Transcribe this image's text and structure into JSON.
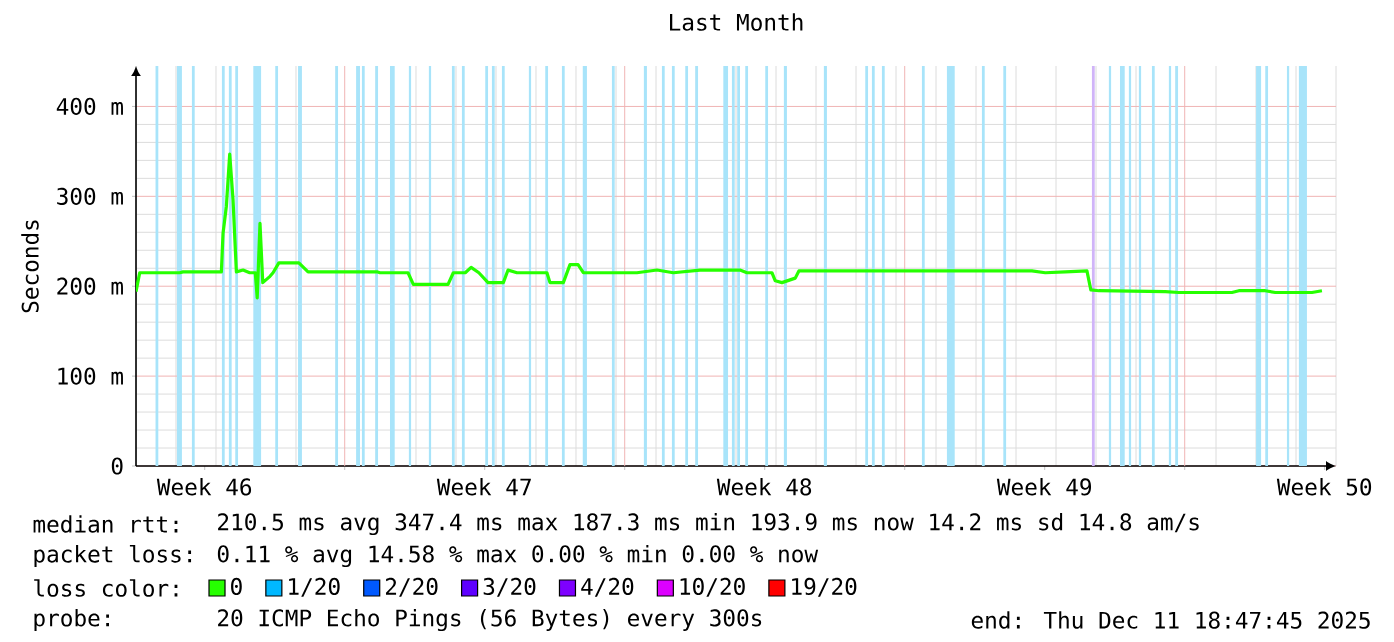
{
  "chart_data": {
    "type": "line",
    "title": "Last Month",
    "ylabel": "Seconds",
    "xlim": [
      "2025-11-11T18:47",
      "2025-12-11T18:47"
    ],
    "ylim": [
      0,
      445
    ],
    "xticks": [
      {
        "value": "2025-11-13T12:00",
        "label": "Week 46"
      },
      {
        "value": "2025-11-17T00:00",
        "label": null
      },
      {
        "value": "2025-11-20T12:00",
        "label": "Week 47"
      },
      {
        "value": "2025-11-24T00:00",
        "label": null
      },
      {
        "value": "2025-11-27T12:00",
        "label": "Week 48"
      },
      {
        "value": "2025-12-01T00:00",
        "label": null
      },
      {
        "value": "2025-12-04T12:00",
        "label": "Week 49"
      },
      {
        "value": "2025-12-08T00:00",
        "label": null
      },
      {
        "value": "2025-12-11T12:00",
        "label": "Week 50"
      }
    ],
    "yticks": [
      0,
      {
        "value": 100,
        "label": "100 m"
      },
      {
        "value": 200,
        "label": "200 m"
      },
      {
        "value": 300,
        "label": "300 m"
      },
      {
        "value": 400,
        "label": "400 m"
      }
    ],
    "grid": true,
    "legend": "bottom",
    "legend_title": "loss color:",
    "marker": "none",
    "line_style": "solid",
    "series": [
      {
        "name": "0",
        "color": "#26ff00",
        "x": [
          "2025-11-11T18:47",
          "2025-11-11T21:00",
          "2025-11-12T21:00",
          "2025-11-12T23:00",
          "2025-11-13T22:00",
          "2025-11-13T23:00",
          "2025-11-14T01:00",
          "2025-11-14T03:00",
          "2025-11-14T05:00",
          "2025-11-14T07:00",
          "2025-11-14T11:00",
          "2025-11-14T15:00",
          "2025-11-14T18:20",
          "2025-11-14T19:30",
          "2025-11-14T21:10",
          "2025-11-14T22:50",
          "2025-11-15T03:10",
          "2025-11-15T05:00",
          "2025-11-15T08:30",
          "2025-11-15T20:30",
          "2025-11-16T02:00",
          "2025-11-17T19:20",
          "2025-11-17T21:10",
          "2025-11-18T14:00",
          "2025-11-18T17:10",
          "2025-11-19T14:00",
          "2025-11-19T17:10",
          "2025-11-20T00:20",
          "2025-11-20T03:50",
          "2025-11-20T08:30",
          "2025-11-20T14:00",
          "2025-11-20T23:10",
          "2025-11-21T02:00",
          "2025-11-21T07:20",
          "2025-11-22T01:20",
          "2025-11-22T03:10",
          "2025-11-22T11:10",
          "2025-11-22T15:10",
          "2025-11-22T20:00",
          "2025-11-22T23:10",
          "2025-11-24T07:20",
          "2025-11-24T19:20",
          "2025-11-25T05:10",
          "2025-11-25T21:10",
          "2025-11-26T21:10",
          "2025-11-27T01:20",
          "2025-11-27T16:20",
          "2025-11-27T18:20",
          "2025-11-27T22:20",
          "2025-11-28T06:20",
          "2025-11-28T08:30",
          "2025-12-04T04:20",
          "2025-12-04T12:20",
          "2025-12-05T00:20",
          "2025-12-05T13:20",
          "2025-12-05T15:40",
          "2025-12-05T20:30",
          "2025-12-07T12:20",
          "2025-12-07T20:30",
          "2025-12-09T04:20",
          "2025-12-09T08:30",
          "2025-12-10T00:20",
          "2025-12-10T06:20",
          "2025-12-11T04:20",
          "2025-12-11T10:20"
        ],
        "values": [
          194,
          215,
          215,
          216,
          216,
          259,
          289,
          347,
          296,
          216,
          218,
          215,
          215,
          187,
          270,
          204,
          211,
          215,
          226,
          226,
          216,
          216,
          215,
          215,
          202,
          202,
          215,
          215,
          221,
          215,
          204,
          204,
          218,
          215,
          215,
          204,
          204,
          224,
          224,
          215,
          215,
          218,
          215,
          218,
          218,
          215,
          215,
          206,
          204,
          209,
          217,
          217,
          215,
          216,
          217,
          196,
          195,
          194,
          193,
          193,
          195,
          195,
          193,
          193,
          195
        ]
      },
      {
        "name": "1/20",
        "color": "#00b8ff"
      },
      {
        "name": "2/20",
        "color": "#0059ff"
      },
      {
        "name": "3/20",
        "color": "#5e00ff"
      },
      {
        "name": "4/20",
        "color": "#7e00ff"
      },
      {
        "name": "10/20",
        "color": "#dd00ff"
      },
      {
        "name": "19/20",
        "color": "#ff0000"
      }
    ],
    "bands": [
      {
        "axis": "x",
        "from": "2025-11-12T06:30",
        "to": "2025-11-12T08:10",
        "color": "#a8e4fa"
      },
      {
        "axis": "x",
        "from": "2025-11-12T19:20",
        "to": "2025-11-12T22:20",
        "color": "#a8e4fa"
      },
      {
        "axis": "x",
        "from": "2025-11-13T04:20",
        "to": "2025-11-13T06:00",
        "color": "#a8e4fa"
      },
      {
        "axis": "x",
        "from": "2025-11-13T22:20",
        "to": "2025-11-14T00:00",
        "color": "#a8e4fa"
      },
      {
        "axis": "x",
        "from": "2025-11-14T02:30",
        "to": "2025-11-14T04:10",
        "color": "#a8e4fa"
      },
      {
        "axis": "x",
        "from": "2025-11-14T06:20",
        "to": "2025-11-14T08:00",
        "color": "#a8e4fa"
      },
      {
        "axis": "x",
        "from": "2025-11-14T17:10",
        "to": "2025-11-14T21:50",
        "color": "#a8e4fa"
      },
      {
        "axis": "x",
        "from": "2025-11-15T06:20",
        "to": "2025-11-15T08:00",
        "color": "#a8e4fa"
      },
      {
        "axis": "x",
        "from": "2025-11-15T20:00",
        "to": "2025-11-15T22:20",
        "color": "#a8e4fa"
      },
      {
        "axis": "x",
        "from": "2025-11-16T18:20",
        "to": "2025-11-16T20:00",
        "color": "#a8e4fa"
      },
      {
        "axis": "x",
        "from": "2025-11-17T06:50",
        "to": "2025-11-17T09:10",
        "color": "#a8e4fa"
      },
      {
        "axis": "x",
        "from": "2025-11-17T10:20",
        "to": "2025-11-17T12:00",
        "color": "#a8e4fa"
      },
      {
        "axis": "x",
        "from": "2025-11-17T18:20",
        "to": "2025-11-17T20:00",
        "color": "#a8e4fa"
      },
      {
        "axis": "x",
        "from": "2025-11-18T03:10",
        "to": "2025-11-18T06:00",
        "color": "#a8e4fa"
      },
      {
        "axis": "x",
        "from": "2025-11-18T14:30",
        "to": "2025-11-18T15:50",
        "color": "#a8e4fa"
      },
      {
        "axis": "x",
        "from": "2025-11-19T02:30",
        "to": "2025-11-19T03:50",
        "color": "#a8e4fa"
      },
      {
        "axis": "x",
        "from": "2025-11-19T16:20",
        "to": "2025-11-19T18:00",
        "color": "#a8e4fa"
      },
      {
        "axis": "x",
        "from": "2025-11-19T22:20",
        "to": "2025-11-20T00:00",
        "color": "#a8e4fa"
      },
      {
        "axis": "x",
        "from": "2025-11-20T12:20",
        "to": "2025-11-20T14:00",
        "color": "#a8e4fa"
      },
      {
        "axis": "x",
        "from": "2025-11-20T16:20",
        "to": "2025-11-20T18:00",
        "color": "#a8e4fa"
      },
      {
        "axis": "x",
        "from": "2025-11-20T22:20",
        "to": "2025-11-21T00:00",
        "color": "#a8e4fa"
      },
      {
        "axis": "x",
        "from": "2025-11-21T14:30",
        "to": "2025-11-21T15:50",
        "color": "#a8e4fa"
      },
      {
        "axis": "x",
        "from": "2025-11-22T00:20",
        "to": "2025-11-22T02:00",
        "color": "#a8e4fa"
      },
      {
        "axis": "x",
        "from": "2025-11-22T10:20",
        "to": "2025-11-22T12:00",
        "color": "#a8e4fa"
      },
      {
        "axis": "x",
        "from": "2025-11-22T22:50",
        "to": "2025-11-23T01:20",
        "color": "#a8e4fa"
      },
      {
        "axis": "x",
        "from": "2025-11-23T16:20",
        "to": "2025-11-23T18:00",
        "color": "#a8e4fa"
      },
      {
        "axis": "x",
        "from": "2025-11-24T11:30",
        "to": "2025-11-24T13:20",
        "color": "#a8e4fa"
      },
      {
        "axis": "x",
        "from": "2025-11-24T22:20",
        "to": "2025-11-25T00:00",
        "color": "#a8e4fa"
      },
      {
        "axis": "x",
        "from": "2025-11-25T04:20",
        "to": "2025-11-25T06:00",
        "color": "#a8e4fa"
      },
      {
        "axis": "x",
        "from": "2025-11-25T12:20",
        "to": "2025-11-25T14:00",
        "color": "#a8e4fa"
      },
      {
        "axis": "x",
        "from": "2025-11-25T18:20",
        "to": "2025-11-25T20:00",
        "color": "#a8e4fa"
      },
      {
        "axis": "x",
        "from": "2025-11-26T11:10",
        "to": "2025-11-26T14:00",
        "color": "#a8e4fa"
      },
      {
        "axis": "x",
        "from": "2025-11-26T16:20",
        "to": "2025-11-26T18:00",
        "color": "#a8e4fa"
      },
      {
        "axis": "x",
        "from": "2025-11-26T19:30",
        "to": "2025-11-26T21:10",
        "color": "#a8e4fa"
      },
      {
        "axis": "x",
        "from": "2025-11-27T00:20",
        "to": "2025-11-27T02:00",
        "color": "#a8e4fa"
      },
      {
        "axis": "x",
        "from": "2025-11-27T12:20",
        "to": "2025-11-27T14:00",
        "color": "#a8e4fa"
      },
      {
        "axis": "x",
        "from": "2025-11-27T23:30",
        "to": "2025-11-28T01:20",
        "color": "#a8e4fa"
      },
      {
        "axis": "x",
        "from": "2025-11-28T23:30",
        "to": "2025-11-29T01:20",
        "color": "#a8e4fa"
      },
      {
        "axis": "x",
        "from": "2025-11-30T00:20",
        "to": "2025-11-30T02:00",
        "color": "#a8e4fa"
      },
      {
        "axis": "x",
        "from": "2025-11-30T04:20",
        "to": "2025-11-30T06:00",
        "color": "#a8e4fa"
      },
      {
        "axis": "x",
        "from": "2025-11-30T10:20",
        "to": "2025-11-30T12:00",
        "color": "#a8e4fa"
      },
      {
        "axis": "x",
        "from": "2025-12-01T10:20",
        "to": "2025-12-01T12:00",
        "color": "#a8e4fa"
      },
      {
        "axis": "x",
        "from": "2025-12-02T01:20",
        "to": "2025-12-02T06:00",
        "color": "#a8e4fa"
      },
      {
        "axis": "x",
        "from": "2025-12-02T22:20",
        "to": "2025-12-03T00:00",
        "color": "#a8e4fa"
      },
      {
        "axis": "x",
        "from": "2025-12-03T11:10",
        "to": "2025-12-03T12:50",
        "color": "#a8e4fa"
      },
      {
        "axis": "x",
        "from": "2025-12-05T16:20",
        "to": "2025-12-05T18:00",
        "color": "#d0b4f8"
      },
      {
        "axis": "x",
        "from": "2025-12-06T02:30",
        "to": "2025-12-06T03:50",
        "color": "#a8e4fa"
      },
      {
        "axis": "x",
        "from": "2025-12-06T09:10",
        "to": "2025-12-06T12:00",
        "color": "#a8e4fa"
      },
      {
        "axis": "x",
        "from": "2025-12-06T14:30",
        "to": "2025-12-06T15:50",
        "color": "#a8e4fa"
      },
      {
        "axis": "x",
        "from": "2025-12-06T20:30",
        "to": "2025-12-06T21:50",
        "color": "#a8e4fa"
      },
      {
        "axis": "x",
        "from": "2025-12-07T04:20",
        "to": "2025-12-07T06:00",
        "color": "#a8e4fa"
      },
      {
        "axis": "x",
        "from": "2025-12-07T14:30",
        "to": "2025-12-07T15:50",
        "color": "#a8e4fa"
      },
      {
        "axis": "x",
        "from": "2025-12-07T18:20",
        "to": "2025-12-07T20:00",
        "color": "#a8e4fa"
      },
      {
        "axis": "x",
        "from": "2025-12-09T18:50",
        "to": "2025-12-09T21:50",
        "color": "#a8e4fa"
      },
      {
        "axis": "x",
        "from": "2025-12-10T00:20",
        "to": "2025-12-10T02:00",
        "color": "#a8e4fa"
      },
      {
        "axis": "x",
        "from": "2025-12-10T13:20",
        "to": "2025-12-10T14:40",
        "color": "#a8e4fa"
      },
      {
        "axis": "x",
        "from": "2025-12-10T20:30",
        "to": "2025-12-11T01:20",
        "color": "#a8e4fa"
      }
    ],
    "annotations": [
      "median rtt:",
      "210.5 ms avg  347.4 ms max  187.3 ms min  193.9 ms now  14.2 ms sd  14.8   am/s",
      "packet loss:",
      "0.11 % avg  14.58 % max  0.00 % min  0.00 % now",
      "probe:",
      "20 ICMP Echo Pings (56 Bytes) every 300s",
      "end: Thu Dec 11 18:47:45 2025"
    ]
  }
}
